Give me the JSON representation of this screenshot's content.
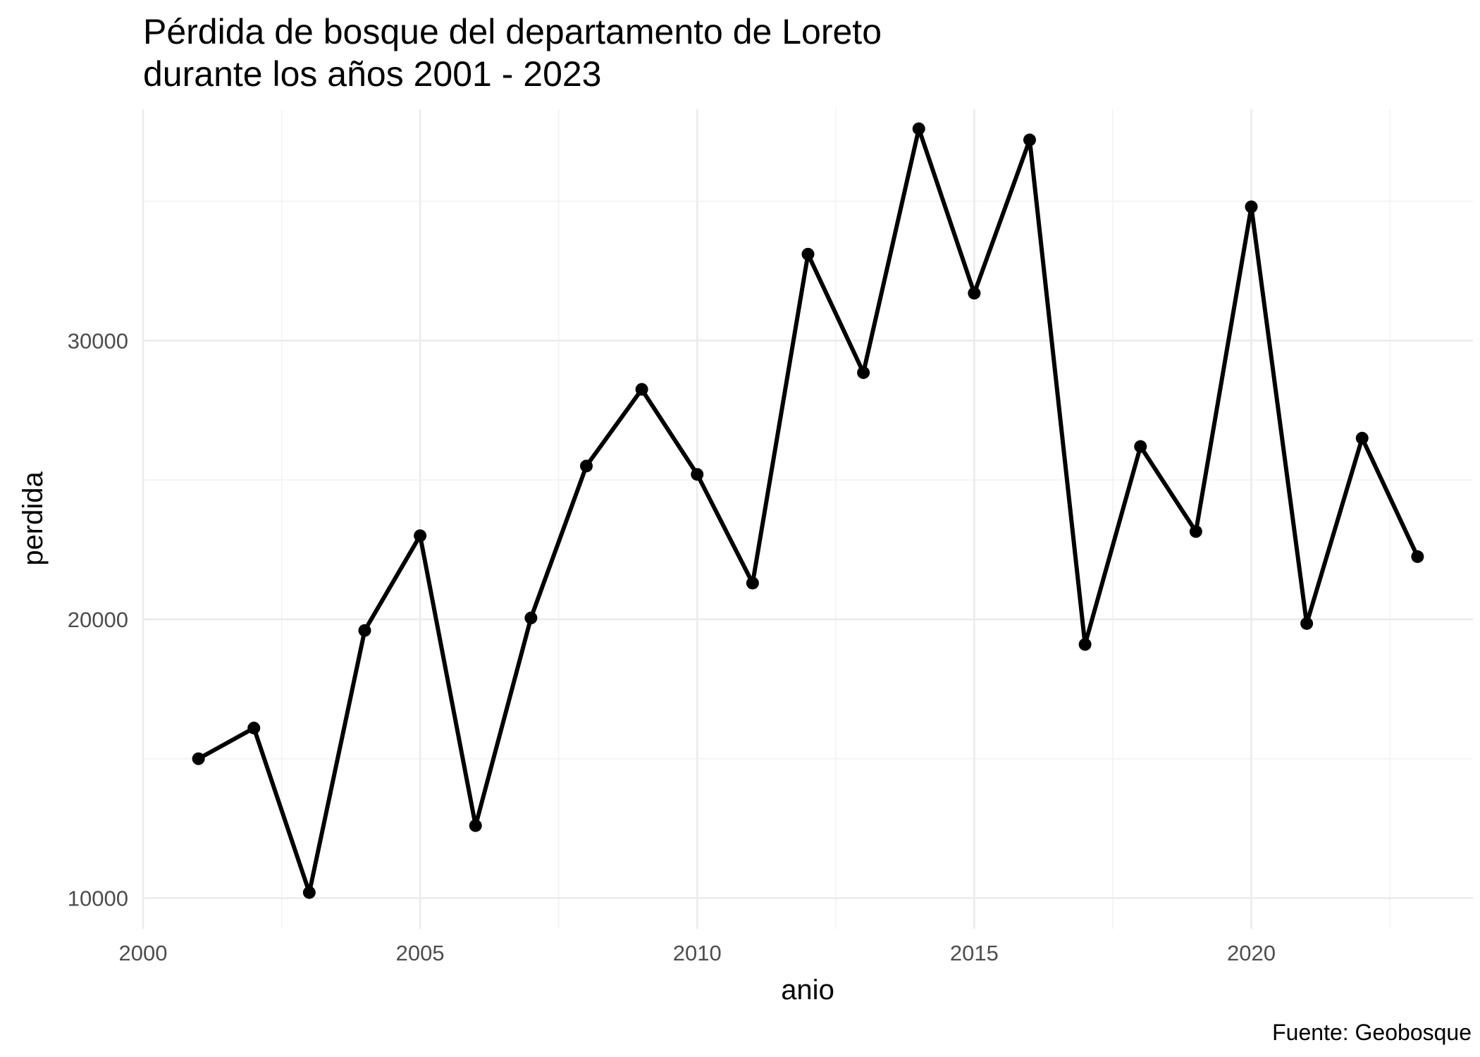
{
  "chart_data": {
    "type": "line",
    "title": "Pérdida de bosque del departamento de Loreto",
    "subtitle": "durante los años 2001 - 2023",
    "xlabel": "anio",
    "ylabel": "perdida",
    "caption": "Fuente: Geobosque",
    "xlim": [
      2000,
      2024
    ],
    "ylim": [
      8900,
      38300
    ],
    "x_ticks": [
      2000,
      2005,
      2010,
      2015,
      2020
    ],
    "x_tick_labels": [
      "2000",
      "2005",
      "2010",
      "2015",
      "2020"
    ],
    "y_ticks": [
      10000,
      20000,
      30000
    ],
    "y_tick_labels": [
      "10000",
      "20000",
      "30000"
    ],
    "x_minor_ticks": [
      2002.5,
      2007.5,
      2012.5,
      2017.5,
      2022.5
    ],
    "y_minor_ticks": [
      15000,
      25000,
      35000
    ],
    "grid": true,
    "legend": "none",
    "line_color": "#000000",
    "series": [
      {
        "x": [
          2001,
          2002,
          2003,
          2004,
          2005,
          2006,
          2007,
          2008,
          2009,
          2010,
          2011,
          2012,
          2013,
          2014,
          2015,
          2016,
          2017,
          2018,
          2019,
          2020,
          2021,
          2022,
          2023
        ],
        "values": [
          15000,
          16100,
          10200,
          19600,
          23000,
          12600,
          20050,
          25500,
          28250,
          25200,
          21300,
          33100,
          28850,
          37600,
          31700,
          37200,
          19100,
          26200,
          23150,
          34800,
          19850,
          26500,
          22250
        ]
      }
    ]
  }
}
